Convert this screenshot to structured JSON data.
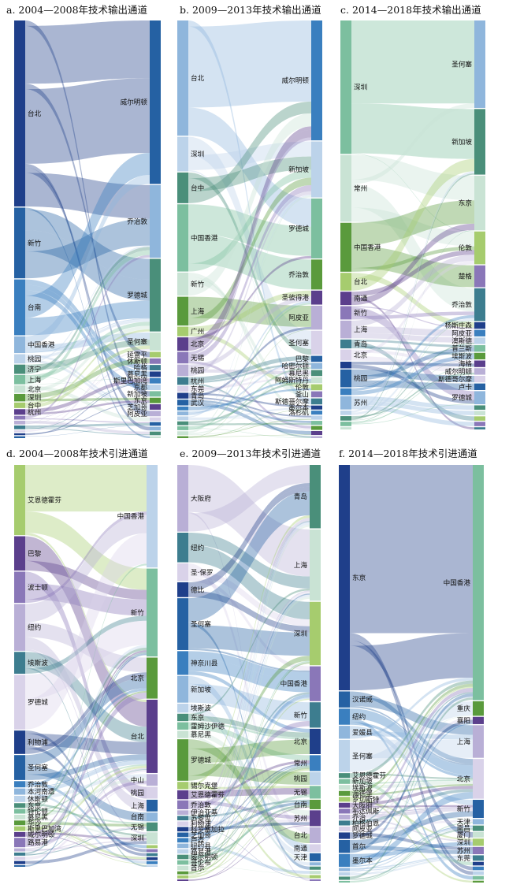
{
  "palette": [
    "#1f3f8a",
    "#2561a3",
    "#3a7fbf",
    "#8fb6dc",
    "#bcd3ea",
    "#4a8f7a",
    "#7cbf9f",
    "#c9e3d4",
    "#5a9a3c",
    "#a6cc6e",
    "#5b3f8c",
    "#8a77b8",
    "#b9afd6",
    "#3d7d8f",
    "#d9d2e9"
  ],
  "chart_data": [
    {
      "type": "sankey",
      "title": "a. 2004—2008年技术输出通道",
      "left_nodes": [
        {
          "label": "台北",
          "value": 100
        },
        {
          "label": "新竹",
          "value": 38
        },
        {
          "label": "台南",
          "value": 30
        },
        {
          "label": "中国香港",
          "value": 9
        },
        {
          "label": "桃园",
          "value": 5
        },
        {
          "label": "济宁",
          "value": 5
        },
        {
          "label": "上海",
          "value": 5
        },
        {
          "label": "北京",
          "value": 4
        },
        {
          "label": "深圳",
          "value": 4
        },
        {
          "label": "台中",
          "value": 3
        },
        {
          "label": "杭州",
          "value": 3
        },
        {
          "label": "",
          "value": 2
        },
        {
          "label": "",
          "value": 2
        },
        {
          "label": "",
          "value": 2
        },
        {
          "label": "",
          "value": 1
        },
        {
          "label": "",
          "value": 1
        },
        {
          "label": "",
          "value": 1
        }
      ],
      "right_nodes": [
        {
          "label": "威尔明顿",
          "value": 90
        },
        {
          "label": "乔治敦",
          "value": 40
        },
        {
          "label": "罗德城",
          "value": 40
        },
        {
          "label": "圣何塞",
          "value": 10
        },
        {
          "label": "延雷平",
          "value": 3
        },
        {
          "label": "休斯顿",
          "value": 3
        },
        {
          "label": "哈格",
          "value": 3
        },
        {
          "label": "慕尼黑",
          "value": 3
        },
        {
          "label": "斯里巴加湾",
          "value": 3
        },
        {
          "label": "京都",
          "value": 3
        },
        {
          "label": "新加坡",
          "value": 3
        },
        {
          "label": "东京",
          "value": 3
        },
        {
          "label": "芝加哥",
          "value": 3
        },
        {
          "label": "阿皮亚",
          "value": 3
        },
        {
          "label": "",
          "value": 2
        },
        {
          "label": "",
          "value": 2
        },
        {
          "label": "",
          "value": 2
        },
        {
          "label": "",
          "value": 2
        },
        {
          "label": "",
          "value": 1
        }
      ]
    },
    {
      "type": "sankey",
      "title": "b. 2009—2013年技术输出通道",
      "left_nodes": [
        {
          "label": "台北",
          "value": 60
        },
        {
          "label": "深圳",
          "value": 18
        },
        {
          "label": "台中",
          "value": 16
        },
        {
          "label": "中国香港",
          "value": 35
        },
        {
          "label": "新竹",
          "value": 12
        },
        {
          "label": "上海",
          "value": 15
        },
        {
          "label": "广州",
          "value": 5
        },
        {
          "label": "北京",
          "value": 7
        },
        {
          "label": "无锡",
          "value": 6
        },
        {
          "label": "桃园",
          "value": 6
        },
        {
          "label": "杭州",
          "value": 4
        },
        {
          "label": "东莞",
          "value": 3
        },
        {
          "label": "青岛",
          "value": 3
        },
        {
          "label": "武汉",
          "value": 3
        },
        {
          "label": "",
          "value": 2
        },
        {
          "label": "",
          "value": 2
        },
        {
          "label": "",
          "value": 2
        },
        {
          "label": "",
          "value": 2
        },
        {
          "label": "",
          "value": 2
        },
        {
          "label": "",
          "value": 2
        },
        {
          "label": "",
          "value": 1
        }
      ],
      "right_nodes": [
        {
          "label": "威尔明顿",
          "value": 60
        },
        {
          "label": "新加坡",
          "value": 28
        },
        {
          "label": "罗德城",
          "value": 30
        },
        {
          "label": "乔治敦",
          "value": 15
        },
        {
          "label": "圣彼得港",
          "value": 7
        },
        {
          "label": "阿皮亚",
          "value": 12
        },
        {
          "label": "圣何塞",
          "value": 12
        },
        {
          "label": "巴黎",
          "value": 3
        },
        {
          "label": "哈密尔顿",
          "value": 3
        },
        {
          "label": "慕尼黑",
          "value": 3
        },
        {
          "label": "阿姆斯特丹",
          "value": 3
        },
        {
          "label": "伦敦",
          "value": 3
        },
        {
          "label": "釜山",
          "value": 3
        },
        {
          "label": "斯德哥尔摩",
          "value": 3
        },
        {
          "label": "墨尔本",
          "value": 2
        },
        {
          "label": "洛杉矶",
          "value": 2
        },
        {
          "label": "",
          "value": 2
        },
        {
          "label": "",
          "value": 2
        },
        {
          "label": "",
          "value": 2
        },
        {
          "label": "",
          "value": 2
        },
        {
          "label": "",
          "value": 1
        }
      ]
    },
    {
      "type": "sankey",
      "title": "c. 2014—2018年技术输出通道",
      "left_nodes": [
        {
          "label": "深圳",
          "value": 60
        },
        {
          "label": "常州",
          "value": 30
        },
        {
          "label": "中国香港",
          "value": 22
        },
        {
          "label": "台北",
          "value": 8
        },
        {
          "label": "南通",
          "value": 6
        },
        {
          "label": "新竹",
          "value": 6
        },
        {
          "label": "上海",
          "value": 8
        },
        {
          "label": "青岛",
          "value": 4
        },
        {
          "label": "北京",
          "value": 5
        },
        {
          "label": "",
          "value": 3
        },
        {
          "label": "桃园",
          "value": 8
        },
        {
          "label": "",
          "value": 3
        },
        {
          "label": "苏州",
          "value": 6
        },
        {
          "label": "",
          "value": 2
        },
        {
          "label": "",
          "value": 2
        },
        {
          "label": "",
          "value": 2
        },
        {
          "label": "",
          "value": 1
        }
      ],
      "right_nodes": [
        {
          "label": "圣何塞",
          "value": 40
        },
        {
          "label": "新加坡",
          "value": 30
        },
        {
          "label": "东京",
          "value": 25
        },
        {
          "label": "伦敦",
          "value": 15
        },
        {
          "label": "楚格",
          "value": 10
        },
        {
          "label": "乔治敦",
          "value": 15
        },
        {
          "label": "杨斯庄森",
          "value": 3
        },
        {
          "label": "阿皮亚",
          "value": 3
        },
        {
          "label": "澳斯德",
          "value": 3
        },
        {
          "label": "普兰斯",
          "value": 3
        },
        {
          "label": "埃斯波",
          "value": 3
        },
        {
          "label": "海格",
          "value": 3
        },
        {
          "label": "威尔明顿",
          "value": 3
        },
        {
          "label": "斯德哥尔摩",
          "value": 3
        },
        {
          "label": "卢卡",
          "value": 3
        },
        {
          "label": "罗德城",
          "value": 6
        },
        {
          "label": "",
          "value": 2
        },
        {
          "label": "",
          "value": 2
        },
        {
          "label": "",
          "value": 2
        },
        {
          "label": "",
          "value": 2
        },
        {
          "label": "",
          "value": 1
        }
      ]
    },
    {
      "type": "sankey",
      "title": "d. 2004—2008年技术引进通道",
      "left_nodes": [
        {
          "label": "艾恩德霍芬",
          "value": 45
        },
        {
          "label": "巴黎",
          "value": 22
        },
        {
          "label": "波士顿",
          "value": 20
        },
        {
          "label": "纽约",
          "value": 30
        },
        {
          "label": "埃斯波",
          "value": 14
        },
        {
          "label": "罗德城",
          "value": 35
        },
        {
          "label": "利物浦",
          "value": 15
        },
        {
          "label": "圣何塞",
          "value": 16
        },
        {
          "label": "乔治敦",
          "value": 4
        },
        {
          "label": "本河南遗",
          "value": 4
        },
        {
          "label": "休斯顿",
          "value": 4
        },
        {
          "label": "东京",
          "value": 3
        },
        {
          "label": "特伦顿",
          "value": 3
        },
        {
          "label": "慕尼黑",
          "value": 3
        },
        {
          "label": "华沙",
          "value": 3
        },
        {
          "label": "斯里巴加湾",
          "value": 3
        },
        {
          "label": "威尔明顿",
          "value": 3
        },
        {
          "label": "路易港",
          "value": 6
        },
        {
          "label": "",
          "value": 2
        },
        {
          "label": "",
          "value": 2
        },
        {
          "label": "",
          "value": 2
        },
        {
          "label": "",
          "value": 2
        },
        {
          "label": "",
          "value": 1
        }
      ],
      "right_nodes": [
        {
          "label": "中国香港",
          "value": 70
        },
        {
          "label": "新竹",
          "value": 60
        },
        {
          "label": "北京",
          "value": 28
        },
        {
          "label": "台北",
          "value": 50
        },
        {
          "label": "中山",
          "value": 8
        },
        {
          "label": "桃园",
          "value": 8
        },
        {
          "label": "上海",
          "value": 8
        },
        {
          "label": "台南",
          "value": 6
        },
        {
          "label": "无锡",
          "value": 6
        },
        {
          "label": "深圳",
          "value": 8
        },
        {
          "label": "",
          "value": 2
        },
        {
          "label": "",
          "value": 2
        },
        {
          "label": "",
          "value": 2
        },
        {
          "label": "",
          "value": 2
        },
        {
          "label": "",
          "value": 2
        },
        {
          "label": "",
          "value": 1
        }
      ]
    },
    {
      "type": "sankey",
      "title": "e. 2009—2013年技术引进通道",
      "left_nodes": [
        {
          "label": "大阪府",
          "value": 45
        },
        {
          "label": "纽约",
          "value": 20
        },
        {
          "label": "圣·保罗",
          "value": 12
        },
        {
          "label": "德比",
          "value": 10
        },
        {
          "label": "圣何塞",
          "value": 35
        },
        {
          "label": "神奈川县",
          "value": 16
        },
        {
          "label": "新加坡",
          "value": 18
        },
        {
          "label": "埃斯波",
          "value": 6
        },
        {
          "label": "东京",
          "value": 5
        },
        {
          "label": "雷姆沙伊德",
          "value": 5
        },
        {
          "label": "慕尼黑",
          "value": 5
        },
        {
          "label": "罗德城",
          "value": 28
        },
        {
          "label": "锡尔克堡",
          "value": 5
        },
        {
          "label": "艾恩德霍芬",
          "value": 6
        },
        {
          "label": "乔治敦",
          "value": 6
        },
        {
          "label": "伊治亚基",
          "value": 3
        },
        {
          "label": "苏黎世",
          "value": 3
        },
        {
          "label": "利物浦",
          "value": 3
        },
        {
          "label": "科罗塞加拉",
          "value": 3
        },
        {
          "label": "芝加哥",
          "value": 3
        },
        {
          "label": "芦森",
          "value": 3
        },
        {
          "label": "纽约县",
          "value": 3
        },
        {
          "label": "路易港",
          "value": 3
        },
        {
          "label": "威尔明顿",
          "value": 3
        },
        {
          "label": "哥伦布",
          "value": 3
        },
        {
          "label": "首尔",
          "value": 3
        },
        {
          "label": "",
          "value": 2
        },
        {
          "label": "",
          "value": 2
        },
        {
          "label": "",
          "value": 1
        }
      ],
      "right_nodes": [
        {
          "label": "青岛",
          "value": 40
        },
        {
          "label": "上海",
          "value": 45
        },
        {
          "label": "深圳",
          "value": 40
        },
        {
          "label": "中国香港",
          "value": 22
        },
        {
          "label": "新竹",
          "value": 16
        },
        {
          "label": "北京",
          "value": 16
        },
        {
          "label": "常州",
          "value": 10
        },
        {
          "label": "桃园",
          "value": 8
        },
        {
          "label": "无锡",
          "value": 8
        },
        {
          "label": "台南",
          "value": 6
        },
        {
          "label": "苏州",
          "value": 10
        },
        {
          "label": "台北",
          "value": 10
        },
        {
          "label": "南通",
          "value": 5
        },
        {
          "label": "天津",
          "value": 5
        },
        {
          "label": "",
          "value": 2
        },
        {
          "label": "",
          "value": 2
        },
        {
          "label": "",
          "value": 2
        },
        {
          "label": "",
          "value": 2
        },
        {
          "label": "",
          "value": 1
        }
      ]
    },
    {
      "type": "sankey",
      "title": "f. 2014—2018年技术引进通道",
      "left_nodes": [
        {
          "label": "东京",
          "value": 140
        },
        {
          "label": "汉诺威",
          "value": 10
        },
        {
          "label": "纽约",
          "value": 10
        },
        {
          "label": "爱媛县",
          "value": 8
        },
        {
          "label": "圣何塞",
          "value": 20
        },
        {
          "label": "艾恩德霍芬",
          "value": 3
        },
        {
          "label": "新加坡",
          "value": 3
        },
        {
          "label": "埃斯波",
          "value": 3
        },
        {
          "label": "海德堡",
          "value": 3
        },
        {
          "label": "罗切斯特",
          "value": 3
        },
        {
          "label": "大阪府",
          "value": 3
        },
        {
          "label": "布达佩斯",
          "value": 3
        },
        {
          "label": "乔治",
          "value": 3
        },
        {
          "label": "柏格伯恩",
          "value": 3
        },
        {
          "label": "阿皮亚",
          "value": 3
        },
        {
          "label": "罗德城",
          "value": 4
        },
        {
          "label": "首尔",
          "value": 8
        },
        {
          "label": "墨尔本",
          "value": 8
        },
        {
          "label": "",
          "value": 2
        },
        {
          "label": "",
          "value": 2
        },
        {
          "label": "",
          "value": 2
        },
        {
          "label": "",
          "value": 1
        }
      ],
      "right_nodes": [
        {
          "label": "中国香港",
          "value": 130
        },
        {
          "label": "重庆",
          "value": 8
        },
        {
          "label": "襄阳",
          "value": 4
        },
        {
          "label": "上海",
          "value": 18
        },
        {
          "label": "北京",
          "value": 22
        },
        {
          "label": "新竹",
          "value": 10
        },
        {
          "label": "天津",
          "value": 3
        },
        {
          "label": "南昌",
          "value": 3
        },
        {
          "label": "厦门",
          "value": 3
        },
        {
          "label": "深圳",
          "value": 4
        },
        {
          "label": "苏州",
          "value": 4
        },
        {
          "label": "东莞",
          "value": 3
        },
        {
          "label": "",
          "value": 2
        },
        {
          "label": "",
          "value": 2
        },
        {
          "label": "",
          "value": 2
        },
        {
          "label": "",
          "value": 2
        },
        {
          "label": "",
          "value": 1
        }
      ]
    }
  ]
}
